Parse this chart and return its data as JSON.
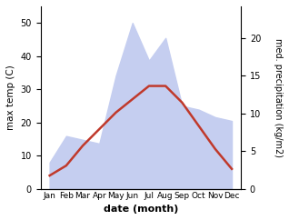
{
  "months": [
    "Jan",
    "Feb",
    "Mar",
    "Apr",
    "May",
    "Jun",
    "Jul",
    "Aug",
    "Sep",
    "Oct",
    "Nov",
    "Dec"
  ],
  "temperature": [
    4,
    7,
    13,
    18,
    23,
    27,
    31,
    31,
    26,
    19,
    12,
    6
  ],
  "precipitation_mm": [
    3.5,
    7,
    6.5,
    6,
    15,
    22,
    17,
    20,
    11,
    10.5,
    9.5,
    9
  ],
  "temp_color": "#c0392b",
  "precip_fill_color": "#c5cef0",
  "temp_ylim": [
    0,
    55
  ],
  "precip_ylim": [
    0,
    24.2
  ],
  "temp_yticks": [
    0,
    10,
    20,
    30,
    40,
    50
  ],
  "precip_yticks": [
    0,
    5,
    10,
    15,
    20
  ],
  "xlabel": "date (month)",
  "ylabel_left": "max temp (C)",
  "ylabel_right": "med. precipitation (kg/m2)",
  "figsize": [
    3.18,
    2.42
  ],
  "dpi": 100
}
